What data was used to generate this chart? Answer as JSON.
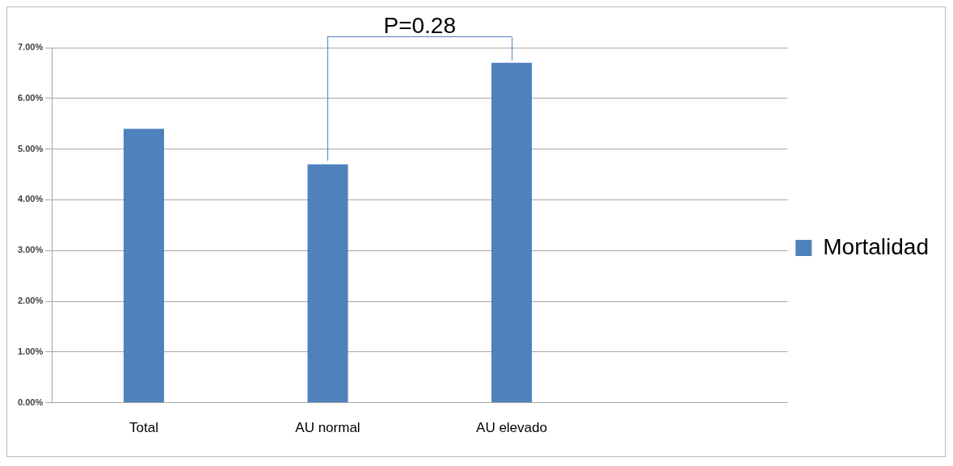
{
  "chart_data": {
    "type": "bar",
    "categories": [
      "Total",
      "AU normal",
      "AU elevado",
      null
    ],
    "series": [
      {
        "name": "Mortalidad",
        "color": "#4f81bd",
        "values": [
          5.4,
          4.7,
          6.7,
          null
        ]
      }
    ],
    "ylim": [
      0,
      7
    ],
    "yticks": [
      {
        "value": 0,
        "label": "0.00%"
      },
      {
        "value": 1,
        "label": "1.00%"
      },
      {
        "value": 2,
        "label": "2.00%"
      },
      {
        "value": 3,
        "label": "3.00%"
      },
      {
        "value": 4,
        "label": "4.00%"
      },
      {
        "value": 5,
        "label": "5.00%"
      },
      {
        "value": 6,
        "label": "6.00%"
      },
      {
        "value": 7,
        "label": "7.00%"
      }
    ],
    "grid": "y",
    "legend": "right",
    "annotations": [
      "P=0.28"
    ]
  }
}
